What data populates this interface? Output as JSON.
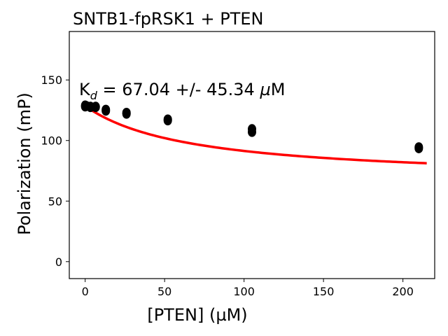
{
  "chart_data": {
    "type": "scatter",
    "title": "SNTB1-fpRSK1 + PTEN",
    "xlabel": "[PTEN] (µM)",
    "ylabel": "Polarization (mP)",
    "xlim": [
      -10,
      220
    ],
    "ylim": [
      -14,
      190
    ],
    "x_ticks": [
      0,
      50,
      100,
      150,
      200
    ],
    "y_ticks": [
      0,
      50,
      100,
      150
    ],
    "grid": false,
    "annotation": {
      "prefix": "K",
      "subscript": "d",
      "value_text": " = 67.04 +/- 45.34 ",
      "unit_mu": "µ",
      "unit_rest": "M"
    },
    "series": [
      {
        "kind": "points",
        "color": "#000000",
        "points": [
          [
            0,
            129
          ],
          [
            0,
            128
          ],
          [
            0.8,
            128.5
          ],
          [
            3.3,
            128
          ],
          [
            3.3,
            127.5
          ],
          [
            6.6,
            128
          ],
          [
            6.6,
            127.5
          ],
          [
            13,
            125.5
          ],
          [
            13,
            124.5
          ],
          [
            26,
            123
          ],
          [
            26,
            122
          ],
          [
            52,
            117.5
          ],
          [
            52,
            116.5
          ],
          [
            105,
            109.5
          ],
          [
            105,
            107
          ],
          [
            210,
            94.5
          ],
          [
            210,
            93.5
          ]
        ]
      },
      {
        "kind": "fit",
        "color": "#ff0000",
        "x_start": 0,
        "x_end": 215,
        "model": "single_site_binding",
        "params": {
          "top": 128.5,
          "amplitude": 62,
          "kd": 67.04
        }
      }
    ]
  }
}
